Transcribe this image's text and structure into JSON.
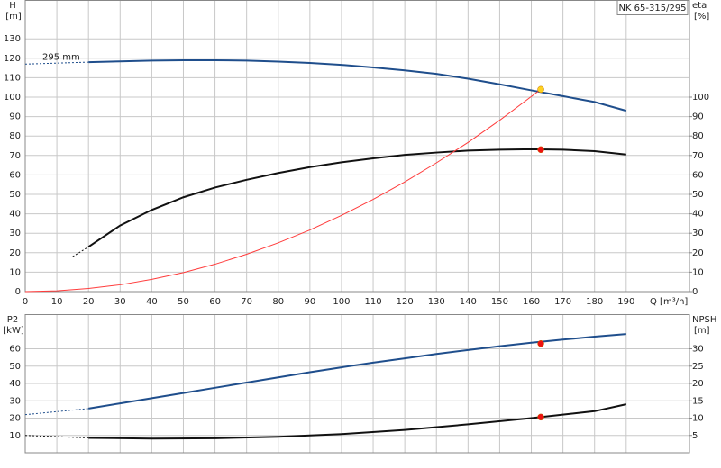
{
  "chart_data": [
    {
      "type": "line",
      "title": "NK 65-315/295",
      "annotation": "295 mm",
      "ylabel": "H",
      "yunit": "[m]",
      "y2label": "eta",
      "y2unit": "[%]",
      "xlabel": "Q [m³/h]",
      "xlim": [
        0,
        210
      ],
      "xticks": [
        0,
        10,
        20,
        30,
        40,
        50,
        60,
        70,
        80,
        90,
        100,
        110,
        120,
        130,
        140,
        150,
        160,
        170,
        180,
        190
      ],
      "ylim": [
        0,
        150
      ],
      "yticks": [
        0,
        10,
        20,
        30,
        40,
        50,
        60,
        70,
        80,
        90,
        100,
        110,
        120,
        130
      ],
      "y2lim": [
        0,
        150
      ],
      "y2ticks": [
        0,
        10,
        20,
        30,
        40,
        50,
        60,
        70,
        80,
        90,
        100
      ],
      "grid": true,
      "show_xtick_labels": true,
      "series": [
        {
          "color": "#1f4e8c",
          "dashed": true,
          "width": 1,
          "x": [
            0,
            20
          ],
          "values": [
            117,
            118
          ]
        },
        {
          "color": "#1f4e8c",
          "dashed": false,
          "width": 2,
          "x": [
            20,
            30,
            40,
            50,
            60,
            70,
            80,
            90,
            100,
            110,
            120,
            130,
            140,
            150,
            160,
            170,
            180,
            190
          ],
          "values": [
            118,
            118.4,
            118.8,
            119,
            119,
            118.8,
            118.3,
            117.6,
            116.6,
            115.3,
            113.8,
            112,
            109.5,
            106.6,
            103.5,
            100.5,
            97.5,
            93
          ]
        },
        {
          "color": "#111111",
          "dashed": true,
          "width": 1,
          "axis": "y2",
          "x": [
            15,
            20
          ],
          "values": [
            18,
            23
          ]
        },
        {
          "color": "#111111",
          "dashed": false,
          "width": 2,
          "axis": "y2",
          "x": [
            20,
            30,
            40,
            50,
            60,
            70,
            80,
            90,
            100,
            110,
            120,
            130,
            140,
            150,
            160,
            170,
            180,
            190
          ],
          "values": [
            23,
            34,
            42,
            48.5,
            53.5,
            57.5,
            61,
            64,
            66.5,
            68.5,
            70.3,
            71.5,
            72.5,
            73,
            73.2,
            73,
            72.2,
            70.5
          ]
        },
        {
          "color": "#ff3b3b",
          "dashed": false,
          "width": 1,
          "x": [
            0,
            10,
            20,
            30,
            40,
            50,
            60,
            70,
            80,
            90,
            100,
            110,
            120,
            130,
            140,
            150,
            163
          ],
          "values": [
            0,
            0.4,
            1.6,
            3.5,
            6.3,
            9.8,
            14.1,
            19.2,
            25.1,
            31.7,
            39.2,
            47.4,
            56.4,
            66.2,
            76.7,
            88.1,
            104
          ]
        },
        {
          "color": "#ffd21f",
          "marker": true,
          "x": [
            163
          ],
          "values": [
            104
          ]
        },
        {
          "color": "#ee1111",
          "marker": true,
          "axis": "y2",
          "x": [
            163
          ],
          "values": [
            73
          ]
        }
      ]
    },
    {
      "type": "line",
      "ylabel": "P2",
      "yunit": "[kW]",
      "y2label": "NPSH",
      "y2unit": "[m]",
      "xlim": [
        0,
        210
      ],
      "xticks": [
        0,
        10,
        20,
        30,
        40,
        50,
        60,
        70,
        80,
        90,
        100,
        110,
        120,
        130,
        140,
        150,
        160,
        170,
        180,
        190
      ],
      "ylim": [
        0,
        80
      ],
      "yticks": [
        10,
        20,
        30,
        40,
        50,
        60
      ],
      "y2lim": [
        0,
        40
      ],
      "y2ticks": [
        5,
        10,
        15,
        20,
        25,
        30
      ],
      "grid": true,
      "show_xtick_labels": false,
      "series": [
        {
          "color": "#1f4e8c",
          "dashed": true,
          "width": 1,
          "x": [
            0,
            20
          ],
          "values": [
            22,
            25.5
          ]
        },
        {
          "color": "#1f4e8c",
          "dashed": false,
          "width": 2,
          "x": [
            20,
            30,
            40,
            50,
            60,
            70,
            80,
            90,
            100,
            110,
            120,
            130,
            140,
            150,
            160,
            170,
            180,
            190
          ],
          "values": [
            25.5,
            28.5,
            31.5,
            34.5,
            37.5,
            40.5,
            43.5,
            46.5,
            49.3,
            52,
            54.5,
            57,
            59.3,
            61.5,
            63.5,
            65.3,
            67,
            68.5
          ]
        },
        {
          "color": "#111111",
          "dashed": true,
          "width": 1,
          "axis": "y2",
          "x": [
            0,
            20
          ],
          "values": [
            5,
            4.3
          ]
        },
        {
          "color": "#111111",
          "dashed": false,
          "width": 2,
          "axis": "y2",
          "x": [
            20,
            40,
            60,
            80,
            100,
            120,
            140,
            160,
            170,
            180,
            190
          ],
          "values": [
            4.3,
            4.1,
            4.2,
            4.6,
            5.4,
            6.6,
            8.2,
            10,
            11,
            12,
            14
          ]
        },
        {
          "color": "#ee1111",
          "marker": true,
          "x": [
            163
          ],
          "values": [
            63
          ]
        },
        {
          "color": "#ee1111",
          "marker": true,
          "axis": "y2",
          "x": [
            163
          ],
          "values": [
            10.3
          ]
        }
      ]
    }
  ]
}
